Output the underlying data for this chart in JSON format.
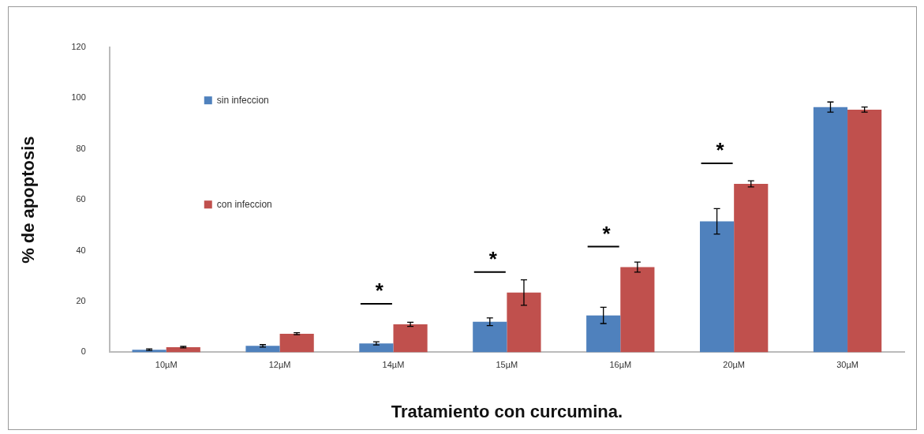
{
  "chart_data": {
    "type": "bar",
    "xlabel": "Tratamiento con curcumina.",
    "ylabel": "% de apoptosis",
    "categories": [
      "10µM",
      "12µM",
      "14µM",
      "15µM",
      "16µM",
      "20µM",
      "30µM"
    ],
    "series": [
      {
        "name": "sin infeccion",
        "color": "#4f81bd",
        "values": [
          1,
          2.5,
          3.5,
          12,
          14.5,
          51.5,
          96.5
        ],
        "errors": [
          0.3,
          0.5,
          0.6,
          1.5,
          3.2,
          5,
          2
        ]
      },
      {
        "name": "con infeccion",
        "color": "#c0504d",
        "values": [
          2,
          7.3,
          11,
          23.5,
          33.5,
          66.3,
          95.5
        ],
        "errors": [
          0.3,
          0.4,
          0.8,
          5,
          2,
          1.2,
          1
        ]
      }
    ],
    "annotations": [
      "*",
      "*",
      "*",
      "*"
    ],
    "ylim": [
      0,
      120
    ],
    "yticks": [
      0,
      20,
      40,
      60,
      80,
      100,
      120
    ],
    "grid": false,
    "legend": "top"
  }
}
